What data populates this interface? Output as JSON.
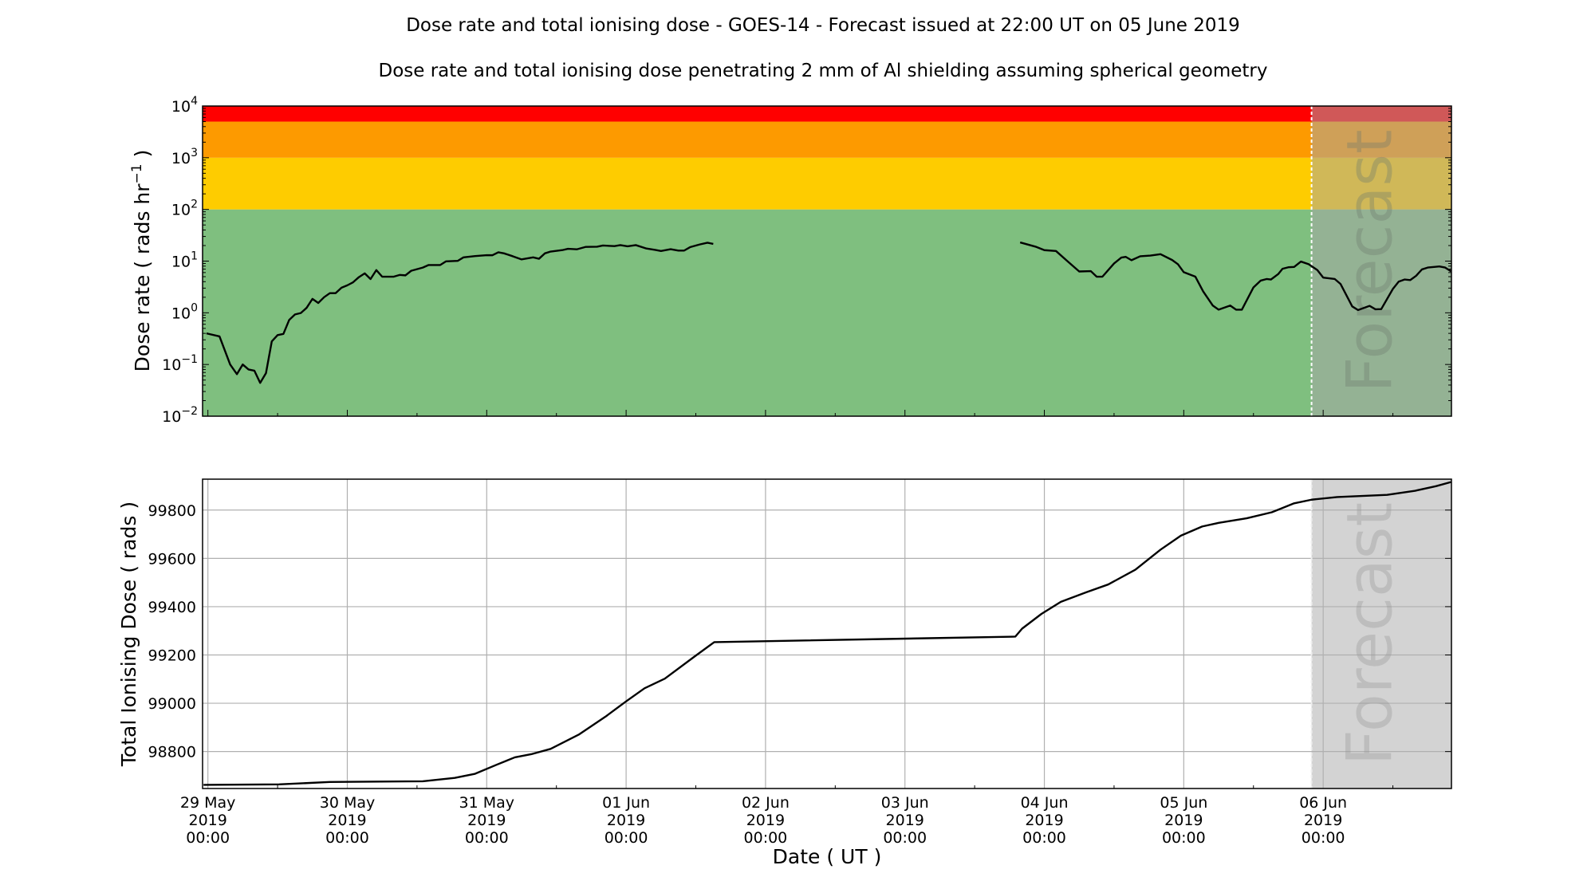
{
  "title": "Dose rate and total ionising dose - GOES-14 - Forecast issued at 22:00 UT on 05 June 2019",
  "subtitle": "Dose rate and total ionising dose penetrating 2 mm of Al shielding assuming spherical geometry",
  "forecast_label": "Forecast",
  "colors": {
    "red": "#ff0000",
    "orange": "#fd9a00",
    "yellow": "#fecc00",
    "green": "#7fbf7f",
    "forecast_overlay": "rgba(167,167,167,0.53)",
    "forecast_bg": "#d3d3d3",
    "line": "#000000",
    "grid": "#b0b0b0"
  },
  "chart_data": [
    {
      "type": "line",
      "ylabel_main": "Dose rate ( rads hr",
      "ylabel_sup": "−1",
      "ylabel_end": " )",
      "yscale": "log",
      "ylim": [
        0.01,
        10000
      ],
      "xlim": [
        "2019-05-28T23:05",
        "2019-06-06T22:05"
      ],
      "yticks": [
        {
          "base": "10",
          "exp": "−2"
        },
        {
          "base": "10",
          "exp": "−1"
        },
        {
          "base": "10",
          "exp": "0"
        },
        {
          "base": "10",
          "exp": "1"
        },
        {
          "base": "10",
          "exp": "2"
        },
        {
          "base": "10",
          "exp": "3"
        },
        {
          "base": "10",
          "exp": "4"
        }
      ],
      "bands": [
        {
          "from": 0.01,
          "to": 100,
          "color": "green"
        },
        {
          "from": 100,
          "to": 1000,
          "color": "yellow"
        },
        {
          "from": 1000,
          "to": 5000,
          "color": "orange"
        },
        {
          "from": 5000,
          "to": 10000,
          "color": "red"
        }
      ],
      "forecast_start": "2019-06-05T22:00",
      "grid": false,
      "segments": [
        [
          [
            "2019-05-28T23:45",
            0.4
          ],
          [
            "2019-05-29T02:00",
            0.35
          ],
          [
            "2019-05-29T03:50",
            0.1
          ],
          [
            "2019-05-29T05:00",
            0.065
          ],
          [
            "2019-05-29T06:00",
            0.1
          ],
          [
            "2019-05-29T07:00",
            0.08
          ],
          [
            "2019-05-29T08:00",
            0.076
          ],
          [
            "2019-05-29T09:00",
            0.044
          ],
          [
            "2019-05-29T10:00",
            0.068
          ],
          [
            "2019-05-29T11:00",
            0.28
          ],
          [
            "2019-05-29T12:00",
            0.37
          ],
          [
            "2019-05-29T13:00",
            0.39
          ],
          [
            "2019-05-29T14:00",
            0.73
          ],
          [
            "2019-05-29T15:00",
            0.93
          ],
          [
            "2019-05-29T16:00",
            0.99
          ],
          [
            "2019-05-29T17:00",
            1.25
          ],
          [
            "2019-05-29T18:00",
            1.86
          ],
          [
            "2019-05-29T19:00",
            1.55
          ],
          [
            "2019-05-29T20:00",
            2.0
          ],
          [
            "2019-05-29T21:00",
            2.4
          ],
          [
            "2019-05-29T22:00",
            2.4
          ],
          [
            "2019-05-29T23:00",
            3.06
          ],
          [
            "2019-05-30T00:00",
            3.4
          ],
          [
            "2019-05-30T01:00",
            3.9
          ],
          [
            "2019-05-30T02:00",
            4.9
          ],
          [
            "2019-05-30T03:00",
            5.8
          ],
          [
            "2019-05-30T04:00",
            4.5
          ],
          [
            "2019-05-30T05:00",
            6.7
          ],
          [
            "2019-05-30T06:00",
            5.0
          ],
          [
            "2019-05-30T08:00",
            5.0
          ],
          [
            "2019-05-30T09:00",
            5.4
          ],
          [
            "2019-05-30T10:00",
            5.3
          ],
          [
            "2019-05-30T11:00",
            6.5
          ],
          [
            "2019-05-30T13:00",
            7.5
          ],
          [
            "2019-05-30T14:00",
            8.4
          ],
          [
            "2019-05-30T16:00",
            8.4
          ],
          [
            "2019-05-30T17:00",
            9.9
          ],
          [
            "2019-05-30T19:00",
            10.1
          ],
          [
            "2019-05-30T20:00",
            11.8
          ],
          [
            "2019-05-30T22:00",
            12.5
          ],
          [
            "2019-05-31T00:00",
            13
          ],
          [
            "2019-05-31T01:00",
            13
          ],
          [
            "2019-05-31T02:00",
            14.8
          ],
          [
            "2019-05-31T03:00",
            14.1
          ],
          [
            "2019-05-31T04:30",
            12.4
          ],
          [
            "2019-05-31T06:00",
            10.8
          ],
          [
            "2019-05-31T08:00",
            11.8
          ],
          [
            "2019-05-31T09:00",
            11.1
          ],
          [
            "2019-05-31T10:00",
            14.1
          ],
          [
            "2019-05-31T11:00",
            15.3
          ],
          [
            "2019-05-31T13:00",
            16.3
          ],
          [
            "2019-05-31T14:00",
            17.3
          ],
          [
            "2019-05-31T15:30",
            16.9
          ],
          [
            "2019-05-31T17:00",
            18.8
          ],
          [
            "2019-05-31T19:00",
            19.0
          ],
          [
            "2019-05-31T20:00",
            20
          ],
          [
            "2019-05-31T22:00",
            19.5
          ],
          [
            "2019-05-31T23:00",
            20.4
          ],
          [
            "2019-06-01T00:15",
            19.3
          ],
          [
            "2019-06-01T01:40",
            20.4
          ],
          [
            "2019-06-01T03:30",
            17.5
          ],
          [
            "2019-06-01T05:00",
            16.5
          ],
          [
            "2019-06-01T06:00",
            15.7
          ],
          [
            "2019-06-01T07:40",
            17
          ],
          [
            "2019-06-01T09:00",
            16
          ],
          [
            "2019-06-01T10:00",
            16
          ],
          [
            "2019-06-01T11:00",
            18.6
          ],
          [
            "2019-06-01T12:40",
            21
          ],
          [
            "2019-06-01T14:00",
            22.7
          ],
          [
            "2019-06-01T15:00",
            21.5
          ]
        ],
        [
          [
            "2019-06-03T19:50",
            23
          ],
          [
            "2019-06-03T22:30",
            19
          ],
          [
            "2019-06-04T00:00",
            16.3
          ],
          [
            "2019-06-04T02:00",
            15.7
          ],
          [
            "2019-06-04T04:00",
            9.9
          ],
          [
            "2019-06-04T06:00",
            6.3
          ],
          [
            "2019-06-04T08:00",
            6.4
          ],
          [
            "2019-06-04T09:00",
            5.0
          ],
          [
            "2019-06-04T10:00",
            5.0
          ],
          [
            "2019-06-04T12:00",
            9.0
          ],
          [
            "2019-06-04T13:15",
            11.7
          ],
          [
            "2019-06-04T14:00",
            12.1
          ],
          [
            "2019-06-04T15:00",
            10.4
          ],
          [
            "2019-06-04T16:30",
            12.4
          ],
          [
            "2019-06-04T18:15",
            12.8
          ],
          [
            "2019-06-04T20:00",
            13.6
          ],
          [
            "2019-06-04T22:00",
            10.5
          ],
          [
            "2019-06-04T23:00",
            8.7
          ],
          [
            "2019-06-05T00:00",
            6.1
          ],
          [
            "2019-06-05T02:00",
            5.0
          ],
          [
            "2019-06-05T03:20",
            2.6
          ],
          [
            "2019-06-05T05:00",
            1.38
          ],
          [
            "2019-06-05T06:00",
            1.15
          ],
          [
            "2019-06-05T08:00",
            1.38
          ],
          [
            "2019-06-05T09:00",
            1.15
          ],
          [
            "2019-06-05T10:00",
            1.15
          ],
          [
            "2019-06-05T12:00",
            3.1
          ],
          [
            "2019-06-05T13:15",
            4.2
          ],
          [
            "2019-06-05T14:15",
            4.5
          ],
          [
            "2019-06-05T15:00",
            4.4
          ],
          [
            "2019-06-05T16:15",
            5.6
          ],
          [
            "2019-06-05T17:00",
            7.1
          ],
          [
            "2019-06-05T18:00",
            7.6
          ],
          [
            "2019-06-05T19:00",
            7.7
          ],
          [
            "2019-06-05T20:10",
            9.8
          ],
          [
            "2019-06-05T21:30",
            8.7
          ],
          [
            "2019-06-05T23:00",
            6.7
          ],
          [
            "2019-06-06T00:00",
            4.8
          ],
          [
            "2019-06-06T02:00",
            4.5
          ],
          [
            "2019-06-06T03:00",
            3.6
          ],
          [
            "2019-06-06T05:00",
            1.33
          ],
          [
            "2019-06-06T06:00",
            1.13
          ],
          [
            "2019-06-06T08:00",
            1.36
          ],
          [
            "2019-06-06T09:00",
            1.17
          ],
          [
            "2019-06-06T10:00",
            1.18
          ],
          [
            "2019-06-06T12:00",
            2.9
          ],
          [
            "2019-06-06T13:00",
            4.0
          ],
          [
            "2019-06-06T14:00",
            4.4
          ],
          [
            "2019-06-06T15:00",
            4.3
          ],
          [
            "2019-06-06T16:00",
            5.2
          ],
          [
            "2019-06-06T17:00",
            6.9
          ],
          [
            "2019-06-06T18:00",
            7.5
          ],
          [
            "2019-06-06T20:00",
            7.9
          ],
          [
            "2019-06-06T21:00",
            7.5
          ],
          [
            "2019-06-06T22:00",
            6.35
          ]
        ]
      ]
    },
    {
      "type": "line",
      "xlabel": "Date ( UT )",
      "ylabel": "Total Ionising Dose ( rads )",
      "ylim": [
        98647,
        99928
      ],
      "xlim": [
        "2019-05-28T23:05",
        "2019-06-06T22:05"
      ],
      "yticks": [
        "98800",
        "99000",
        "99200",
        "99400",
        "99600",
        "99800"
      ],
      "grid": true,
      "forecast_start": "2019-06-05T22:00",
      "xticks": [
        {
          "date": "2019-05-29T00:00",
          "lines": [
            "29 May",
            "2019",
            "00:00"
          ]
        },
        {
          "date": "2019-05-30T00:00",
          "lines": [
            "30 May",
            "2019",
            "00:00"
          ]
        },
        {
          "date": "2019-05-31T00:00",
          "lines": [
            "31 May",
            "2019",
            "00:00"
          ]
        },
        {
          "date": "2019-06-01T00:00",
          "lines": [
            "01 Jun",
            "2019",
            "00:00"
          ]
        },
        {
          "date": "2019-06-02T00:00",
          "lines": [
            "02 Jun",
            "2019",
            "00:00"
          ]
        },
        {
          "date": "2019-06-03T00:00",
          "lines": [
            "03 Jun",
            "2019",
            "00:00"
          ]
        },
        {
          "date": "2019-06-04T00:00",
          "lines": [
            "04 Jun",
            "2019",
            "00:00"
          ]
        },
        {
          "date": "2019-06-05T00:00",
          "lines": [
            "05 Jun",
            "2019",
            "00:00"
          ]
        },
        {
          "date": "2019-06-06T00:00",
          "lines": [
            "06 Jun",
            "2019",
            "00:00"
          ]
        }
      ],
      "points": [
        [
          "2019-05-28T23:15",
          98662
        ],
        [
          "2019-05-29T12:15",
          98664
        ],
        [
          "2019-05-29T21:00",
          98674
        ],
        [
          "2019-05-30T13:00",
          98677
        ],
        [
          "2019-05-30T18:30",
          98691
        ],
        [
          "2019-05-30T22:00",
          98708
        ],
        [
          "2019-05-31T01:40",
          98745
        ],
        [
          "2019-05-31T04:50",
          98776
        ],
        [
          "2019-05-31T07:40",
          98789
        ],
        [
          "2019-05-31T11:00",
          98811
        ],
        [
          "2019-05-31T15:50",
          98870
        ],
        [
          "2019-05-31T20:25",
          98944
        ],
        [
          "2019-06-01T00:00",
          99008
        ],
        [
          "2019-06-01T03:10",
          99062
        ],
        [
          "2019-06-01T06:40",
          99102
        ],
        [
          "2019-06-01T11:45",
          99193
        ],
        [
          "2019-06-01T15:10",
          99253
        ],
        [
          "2019-06-03T19:00",
          99276
        ],
        [
          "2019-06-03T20:10",
          99309
        ],
        [
          "2019-06-03T23:30",
          99370
        ],
        [
          "2019-06-04T02:50",
          99420
        ],
        [
          "2019-06-04T07:10",
          99459
        ],
        [
          "2019-06-04T11:00",
          99492
        ],
        [
          "2019-06-04T15:40",
          99553
        ],
        [
          "2019-06-04T20:00",
          99636
        ],
        [
          "2019-06-04T23:30",
          99694
        ],
        [
          "2019-06-05T03:10",
          99732
        ],
        [
          "2019-06-05T06:00",
          99747
        ],
        [
          "2019-06-05T10:50",
          99766
        ],
        [
          "2019-06-05T15:10",
          99791
        ],
        [
          "2019-06-05T19:00",
          99828
        ],
        [
          "2019-06-05T22:00",
          99843
        ],
        [
          "2019-06-06T02:25",
          99854
        ],
        [
          "2019-06-06T11:00",
          99863
        ],
        [
          "2019-06-06T15:50",
          99880
        ],
        [
          "2019-06-06T19:25",
          99899
        ],
        [
          "2019-06-06T22:00",
          99916
        ]
      ]
    }
  ]
}
